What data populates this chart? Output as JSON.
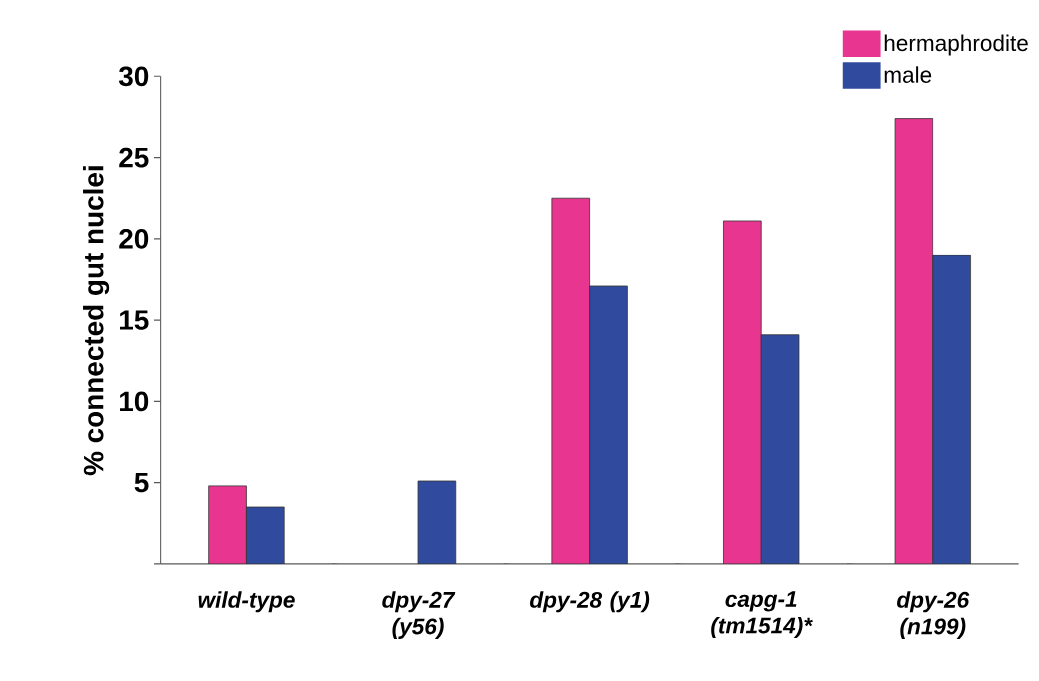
{
  "chart_data": {
    "type": "bar",
    "ylabel": "% connected gut nuclei",
    "categories": [
      "wild-type",
      "dpy-27 (y56)",
      "dpy-28 (y1)",
      "capg-1 (tm1514)*",
      "dpy-26 (n199)"
    ],
    "series": [
      {
        "name": "hermaphrodite",
        "color": "#e8358f",
        "values": [
          4.8,
          null,
          22.5,
          21.1,
          27.4
        ]
      },
      {
        "name": "male",
        "color": "#304a9e",
        "values": [
          3.5,
          5.1,
          17.1,
          14.1,
          19.0
        ]
      }
    ],
    "ylim": [
      0,
      30
    ],
    "yticks": [
      {
        "value": 0,
        "label": null
      },
      5,
      10,
      15,
      20,
      25,
      30
    ],
    "legend": "top right",
    "grid": false
  }
}
